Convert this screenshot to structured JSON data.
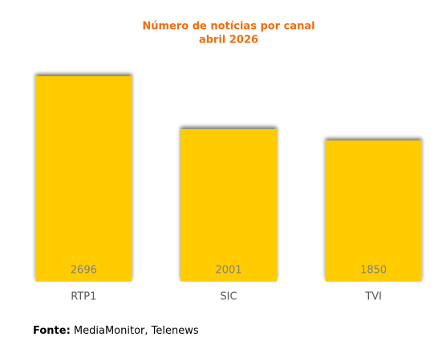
{
  "chart_data": {
    "type": "bar",
    "title": "Número de notícias por canal",
    "subtitle": "abril 2026",
    "categories": [
      "RTP1",
      "SIC",
      "TVI"
    ],
    "values": [
      2696,
      2001,
      1850
    ],
    "color": "#ffcc00",
    "source": {
      "label": "Fonte:",
      "text": "MediaMonitor, Telenews"
    }
  }
}
